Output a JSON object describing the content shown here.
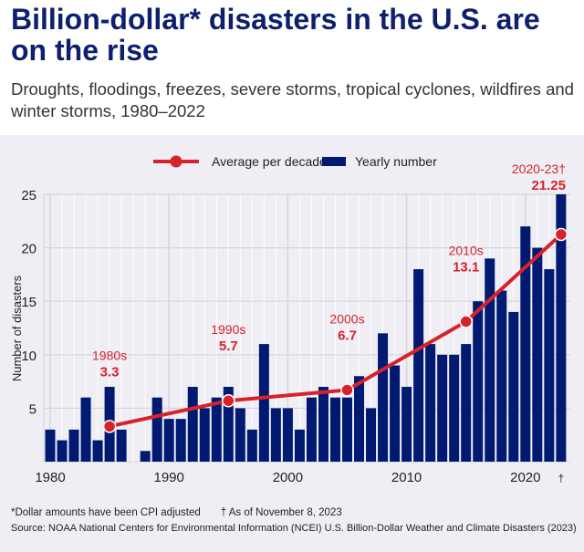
{
  "title": "Billion-dollar* disasters in the U.S. are on the rise",
  "subtitle": "Droughts, floodings, freezes, severe storms, tropical cyclones, wildfires and winter storms, 1980–2022",
  "footnote1": "*Dollar amounts have been CPI adjusted",
  "footnote2": "† As of November 8, 2023",
  "source": "Source: NOAA National Centers for Environmental Information (NCEI) U.S. Billion-Dollar Weather and Climate Disasters (2023)",
  "colors": {
    "bars": "#001a72",
    "line": "#d7222a",
    "background": "#efeef4"
  },
  "chart_data": {
    "type": "bar",
    "ylabel": "Number of disasters",
    "ylim": [
      0,
      25
    ],
    "yticks": [
      5,
      10,
      15,
      20,
      25
    ],
    "xticks": [
      "1980",
      "1990",
      "2000",
      "2010",
      "2020",
      "†"
    ],
    "grid": true,
    "legend_placement": "top",
    "legend": [
      "Average per decade",
      "Yearly number"
    ],
    "years": [
      1980,
      1981,
      1982,
      1983,
      1984,
      1985,
      1986,
      1987,
      1988,
      1989,
      1990,
      1991,
      1992,
      1993,
      1994,
      1995,
      1996,
      1997,
      1998,
      1999,
      2000,
      2001,
      2002,
      2003,
      2004,
      2005,
      2006,
      2007,
      2008,
      2009,
      2010,
      2011,
      2012,
      2013,
      2014,
      2015,
      2016,
      2017,
      2018,
      2019,
      2020,
      2021,
      2022,
      2023
    ],
    "values": [
      3,
      2,
      3,
      6,
      2,
      7,
      3,
      0,
      1,
      6,
      4,
      4,
      7,
      5,
      6,
      7,
      5,
      3,
      11,
      5,
      5,
      3,
      6,
      7,
      6,
      6,
      8,
      5,
      12,
      9,
      7,
      18,
      11,
      10,
      10,
      11,
      15,
      19,
      16,
      14,
      22,
      20,
      18,
      25
    ],
    "decade_averages": [
      {
        "label": "1980s",
        "value": 3.3,
        "year": 1985
      },
      {
        "label": "1990s",
        "value": 5.7,
        "year": 1995
      },
      {
        "label": "2000s",
        "value": 6.7,
        "year": 2005
      },
      {
        "label": "2010s",
        "value": 13.1,
        "year": 2015
      },
      {
        "label": "2020-23†",
        "value": 21.25,
        "year": 2023
      }
    ]
  }
}
